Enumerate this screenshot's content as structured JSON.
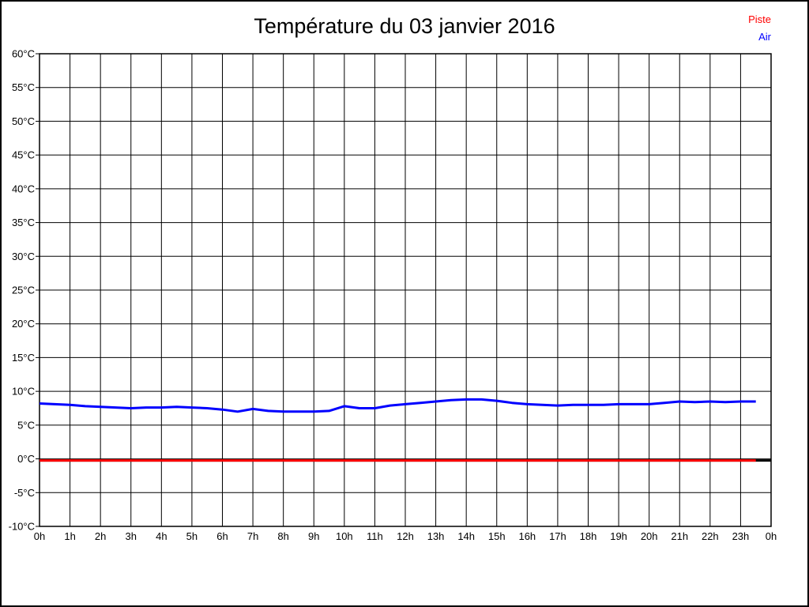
{
  "window": {
    "background": "#ffffff",
    "border_color": "#000000"
  },
  "title": "Température du 03 janvier 2016",
  "legend": {
    "position": "top-right",
    "items": [
      {
        "label": "Piste",
        "color": "#ff0000"
      },
      {
        "label": "Air",
        "color": "#0000ff"
      }
    ]
  },
  "chart_data": {
    "type": "line",
    "title": "Température du 03 janvier 2016",
    "xlabel": "",
    "ylabel": "",
    "x_range": [
      0,
      24
    ],
    "ylim": [
      -10,
      60
    ],
    "y_unit": "°C",
    "y_ticks": [
      60,
      55,
      50,
      45,
      40,
      35,
      30,
      25,
      20,
      15,
      10,
      5,
      0,
      -5,
      -10
    ],
    "x_ticks": [
      0,
      1,
      2,
      3,
      4,
      5,
      6,
      7,
      8,
      9,
      10,
      11,
      12,
      13,
      14,
      15,
      16,
      17,
      18,
      19,
      20,
      21,
      22,
      23,
      24
    ],
    "x_tick_labels": [
      "0h",
      "1h",
      "2h",
      "3h",
      "4h",
      "5h",
      "6h",
      "7h",
      "8h",
      "9h",
      "10h",
      "11h",
      "12h",
      "13h",
      "14h",
      "15h",
      "16h",
      "17h",
      "18h",
      "19h",
      "20h",
      "21h",
      "22h",
      "23h",
      "0h"
    ],
    "grid": true,
    "grid_color": "#000000",
    "axis_color": "#000000",
    "text_color": "#000000",
    "zero_line": {
      "value": 0,
      "color": "#000000",
      "width": 3
    },
    "series": [
      {
        "name": "Piste",
        "color": "#ff0000",
        "width": 3,
        "x": [
          0,
          23.5
        ],
        "y": [
          0,
          0
        ]
      },
      {
        "name": "Air",
        "color": "#0000ff",
        "width": 3,
        "x": [
          0,
          0.5,
          1,
          1.5,
          2,
          2.5,
          3,
          3.5,
          4,
          4.5,
          5,
          5.5,
          6,
          6.5,
          7,
          7.5,
          8,
          8.5,
          9,
          9.5,
          10,
          10.5,
          11,
          11.5,
          12,
          12.5,
          13,
          13.5,
          14,
          14.5,
          15,
          15.5,
          16,
          16.5,
          17,
          17.5,
          18,
          18.5,
          19,
          19.5,
          20,
          20.5,
          21,
          21.5,
          22,
          22.5,
          23,
          23.5
        ],
        "y": [
          8.2,
          8.1,
          8.0,
          7.8,
          7.7,
          7.6,
          7.5,
          7.6,
          7.6,
          7.7,
          7.6,
          7.5,
          7.3,
          7.0,
          7.4,
          7.1,
          7.0,
          7.0,
          7.0,
          7.1,
          7.8,
          7.5,
          7.5,
          7.9,
          8.1,
          8.3,
          8.5,
          8.7,
          8.8,
          8.8,
          8.6,
          8.3,
          8.1,
          8.0,
          7.9,
          8.0,
          8.0,
          8.0,
          8.1,
          8.1,
          8.1,
          8.3,
          8.5,
          8.4,
          8.5,
          8.4,
          8.5,
          8.5
        ]
      }
    ]
  }
}
